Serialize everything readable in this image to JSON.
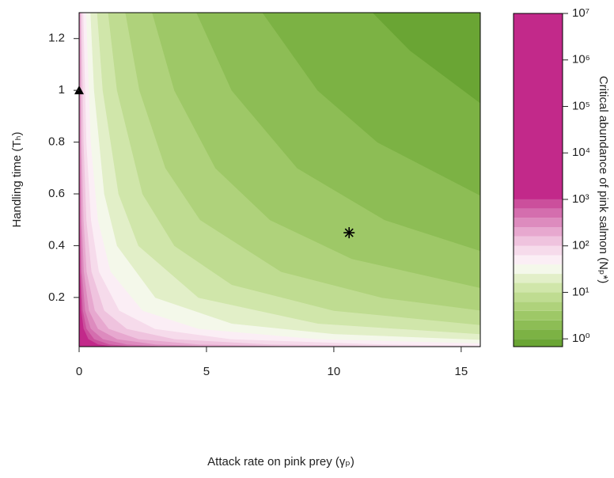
{
  "chart_data": {
    "type": "contour",
    "x_label": "Attack rate on pink prey (γₚ)",
    "y_label": "Handling time (Tₕ)",
    "colorbar_label": "Critical abundance of pink salmon (Nₚ*)",
    "xlim": [
      0,
      15.75
    ],
    "ylim": [
      0.01,
      1.3
    ],
    "xticks": [
      0,
      5,
      10,
      15
    ],
    "yticks": [
      0.2,
      0.4,
      0.6,
      0.8,
      1.0,
      1.2
    ],
    "colorbar_scale": "log",
    "colorbar_lim": [
      0.68,
      10000000
    ],
    "colorbar_ticks": [
      {
        "value": 1,
        "label": "10⁰"
      },
      {
        "value": 10,
        "label": "10¹"
      },
      {
        "value": 100,
        "label": "10²"
      },
      {
        "value": 1000,
        "label": "10³"
      },
      {
        "value": 10000,
        "label": "10⁴"
      },
      {
        "value": 100000,
        "label": "10⁵"
      },
      {
        "value": 1000000,
        "label": "10⁶"
      },
      {
        "value": 10000000,
        "label": "10⁷"
      }
    ],
    "levels": [
      0.68,
      1,
      1.6,
      2.5,
      4,
      6.3,
      10,
      16,
      25,
      40,
      63,
      100,
      160,
      250,
      400,
      630,
      1000,
      10000000
    ],
    "colors": [
      "#6aa534",
      "#7cb244",
      "#8dbd55",
      "#9ec867",
      "#afd27b",
      "#bfdc91",
      "#d0e6aa",
      "#e2efc8",
      "#f4f8ea",
      "#fbeef5",
      "#f6dbeb",
      "#efc3de",
      "#e7a8cf",
      "#dd8bbe",
      "#d46eae",
      "#cb4f9c",
      "#c2298a"
    ],
    "contours": [
      {
        "level": 1,
        "x": [
          11.54,
          13,
          15.75
        ],
        "y": [
          1.3,
          1.154,
          0.952
        ]
      },
      {
        "level": 1.6,
        "x": [
          7.21,
          9.375,
          11.72,
          15.75
        ],
        "y": [
          1.3,
          1.0,
          0.8,
          0.595
        ]
      },
      {
        "level": 2.5,
        "x": [
          4.62,
          6,
          8.57,
          12,
          15.75
        ],
        "y": [
          1.3,
          1.0,
          0.7,
          0.5,
          0.381
        ]
      },
      {
        "level": 4,
        "x": [
          2.88,
          3.75,
          5.36,
          7.5,
          10.71,
          15.75
        ],
        "y": [
          1.3,
          1.0,
          0.7,
          0.5,
          0.35,
          0.238
        ]
      },
      {
        "level": 6.3,
        "x": [
          1.83,
          2.38,
          3.4,
          4.76,
          7.94,
          11.9,
          15.75
        ],
        "y": [
          1.3,
          1.0,
          0.7,
          0.5,
          0.3,
          0.2,
          0.151
        ]
      },
      {
        "level": 10,
        "x": [
          1.15,
          1.5,
          2.5,
          3.75,
          6,
          10,
          15.75
        ],
        "y": [
          1.3,
          1.0,
          0.6,
          0.4,
          0.25,
          0.15,
          0.095
        ]
      },
      {
        "level": 16,
        "x": [
          0.72,
          0.94,
          1.56,
          2.34,
          4.69,
          9.38,
          15.75
        ],
        "y": [
          1.3,
          1.0,
          0.6,
          0.4,
          0.2,
          0.1,
          0.0595
        ]
      },
      {
        "level": 25,
        "x": [
          0.46,
          0.6,
          1,
          1.5,
          3,
          6,
          10,
          15.75
        ],
        "y": [
          1.3,
          1.0,
          0.6,
          0.4,
          0.2,
          0.1,
          0.06,
          0.038
        ]
      },
      {
        "level": 40,
        "x": [
          0.29,
          0.47,
          0.75,
          1.25,
          2.5,
          4.69,
          9.38,
          15.75
        ],
        "y": [
          1.3,
          0.8,
          0.5,
          0.3,
          0.15,
          0.08,
          0.04,
          0.024
        ]
      },
      {
        "level": 63,
        "x": [
          0.18,
          0.3,
          0.48,
          0.79,
          1.59,
          2.98,
          5.95,
          11.9,
          15.75
        ],
        "y": [
          1.3,
          0.8,
          0.5,
          0.3,
          0.15,
          0.08,
          0.04,
          0.02,
          0.0151
        ]
      },
      {
        "level": 100,
        "x": [
          0.115,
          0.19,
          0.3,
          0.5,
          1,
          1.88,
          3.75,
          7.5,
          15
        ],
        "y": [
          1.3,
          0.8,
          0.5,
          0.3,
          0.15,
          0.08,
          0.04,
          0.02,
          0.01
        ]
      },
      {
        "level": 160,
        "x": [
          0.072,
          0.117,
          0.19,
          0.31,
          0.63,
          1.17,
          2.34,
          4.69,
          9.4
        ],
        "y": [
          1.3,
          0.8,
          0.5,
          0.3,
          0.15,
          0.08,
          0.04,
          0.02,
          0.01
        ]
      },
      {
        "level": 250,
        "x": [
          0.046,
          0.075,
          0.12,
          0.2,
          0.4,
          0.75,
          1.5,
          3,
          6
        ],
        "y": [
          1.3,
          0.8,
          0.5,
          0.3,
          0.15,
          0.08,
          0.04,
          0.02,
          0.01
        ]
      },
      {
        "level": 400,
        "x": [
          0.029,
          0.047,
          0.075,
          0.125,
          0.25,
          0.47,
          0.94,
          1.88,
          3.75
        ],
        "y": [
          1.3,
          0.8,
          0.5,
          0.3,
          0.15,
          0.08,
          0.04,
          0.02,
          0.01
        ]
      },
      {
        "level": 630,
        "x": [
          0.018,
          0.03,
          0.048,
          0.079,
          0.16,
          0.3,
          0.6,
          1.19,
          2.38
        ],
        "y": [
          1.3,
          0.8,
          0.5,
          0.3,
          0.15,
          0.08,
          0.04,
          0.02,
          0.01
        ]
      },
      {
        "level": 1000,
        "x": [
          0.012,
          0.019,
          0.03,
          0.05,
          0.1,
          0.19,
          0.375,
          0.75,
          1.5
        ],
        "y": [
          1.3,
          0.8,
          0.5,
          0.3,
          0.15,
          0.08,
          0.04,
          0.02,
          0.01
        ]
      }
    ],
    "markers": [
      {
        "symbol": "triangle",
        "x": 0,
        "y": 1.0
      },
      {
        "symbol": "asterisk",
        "x": 10.6,
        "y": 0.45
      }
    ]
  }
}
